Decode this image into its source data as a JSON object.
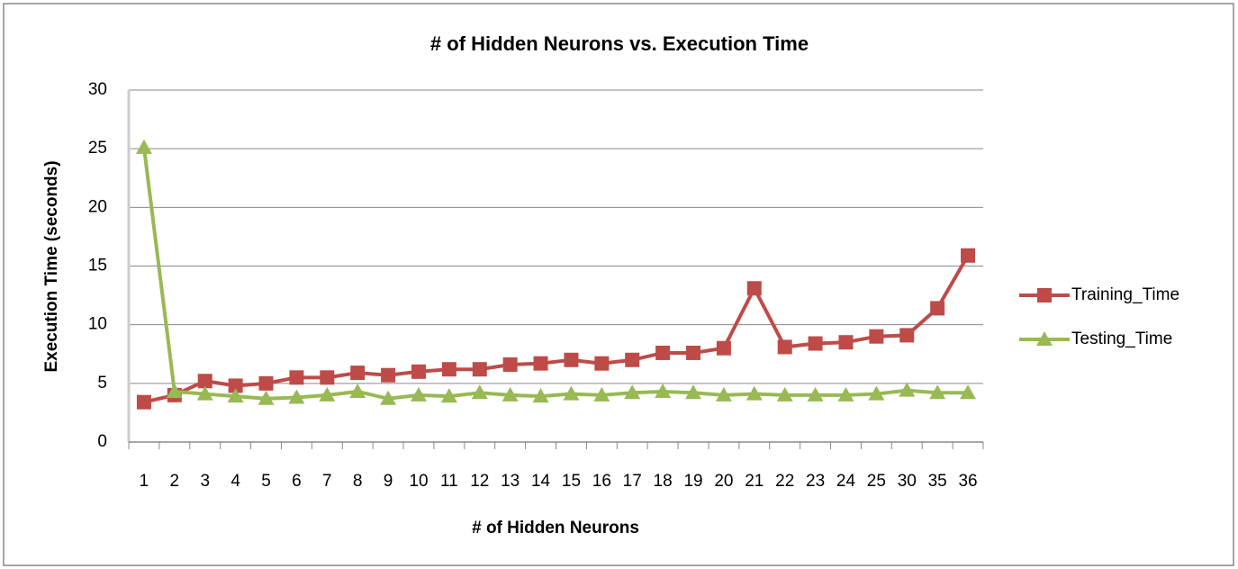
{
  "chart_data": {
    "type": "line",
    "title": "# of Hidden Neurons vs. Execution Time",
    "xlabel": "# of Hidden Neurons",
    "ylabel": "Execution Time (seconds)",
    "categories": [
      "1",
      "2",
      "3",
      "4",
      "5",
      "6",
      "7",
      "8",
      "9",
      "10",
      "11",
      "12",
      "13",
      "14",
      "15",
      "16",
      "17",
      "18",
      "19",
      "20",
      "21",
      "22",
      "23",
      "24",
      "25",
      "30",
      "35",
      "36"
    ],
    "series": [
      {
        "name": "Training_Time",
        "color": "#be4b48",
        "marker": "square",
        "values": [
          3.4,
          4.0,
          5.2,
          4.8,
          5.0,
          5.5,
          5.5,
          5.9,
          5.7,
          6.0,
          6.2,
          6.2,
          6.6,
          6.7,
          7.0,
          6.7,
          7.0,
          7.6,
          7.6,
          8.0,
          13.1,
          8.1,
          8.4,
          8.5,
          9.0,
          9.1,
          11.4,
          15.9
        ]
      },
      {
        "name": "Testing_Time",
        "color": "#98b954",
        "marker": "triangle",
        "values": [
          25.1,
          4.3,
          4.1,
          3.9,
          3.7,
          3.8,
          4.0,
          4.3,
          3.7,
          4.0,
          3.9,
          4.2,
          4.0,
          3.9,
          4.1,
          4.0,
          4.2,
          4.3,
          4.2,
          4.0,
          4.1,
          4.0,
          4.0,
          4.0,
          4.1,
          4.4,
          4.2,
          4.2
        ]
      }
    ],
    "ylim": [
      0,
      30
    ],
    "yticks": [
      0,
      5,
      10,
      15,
      20,
      25,
      30
    ],
    "grid": true,
    "legend": "right"
  }
}
